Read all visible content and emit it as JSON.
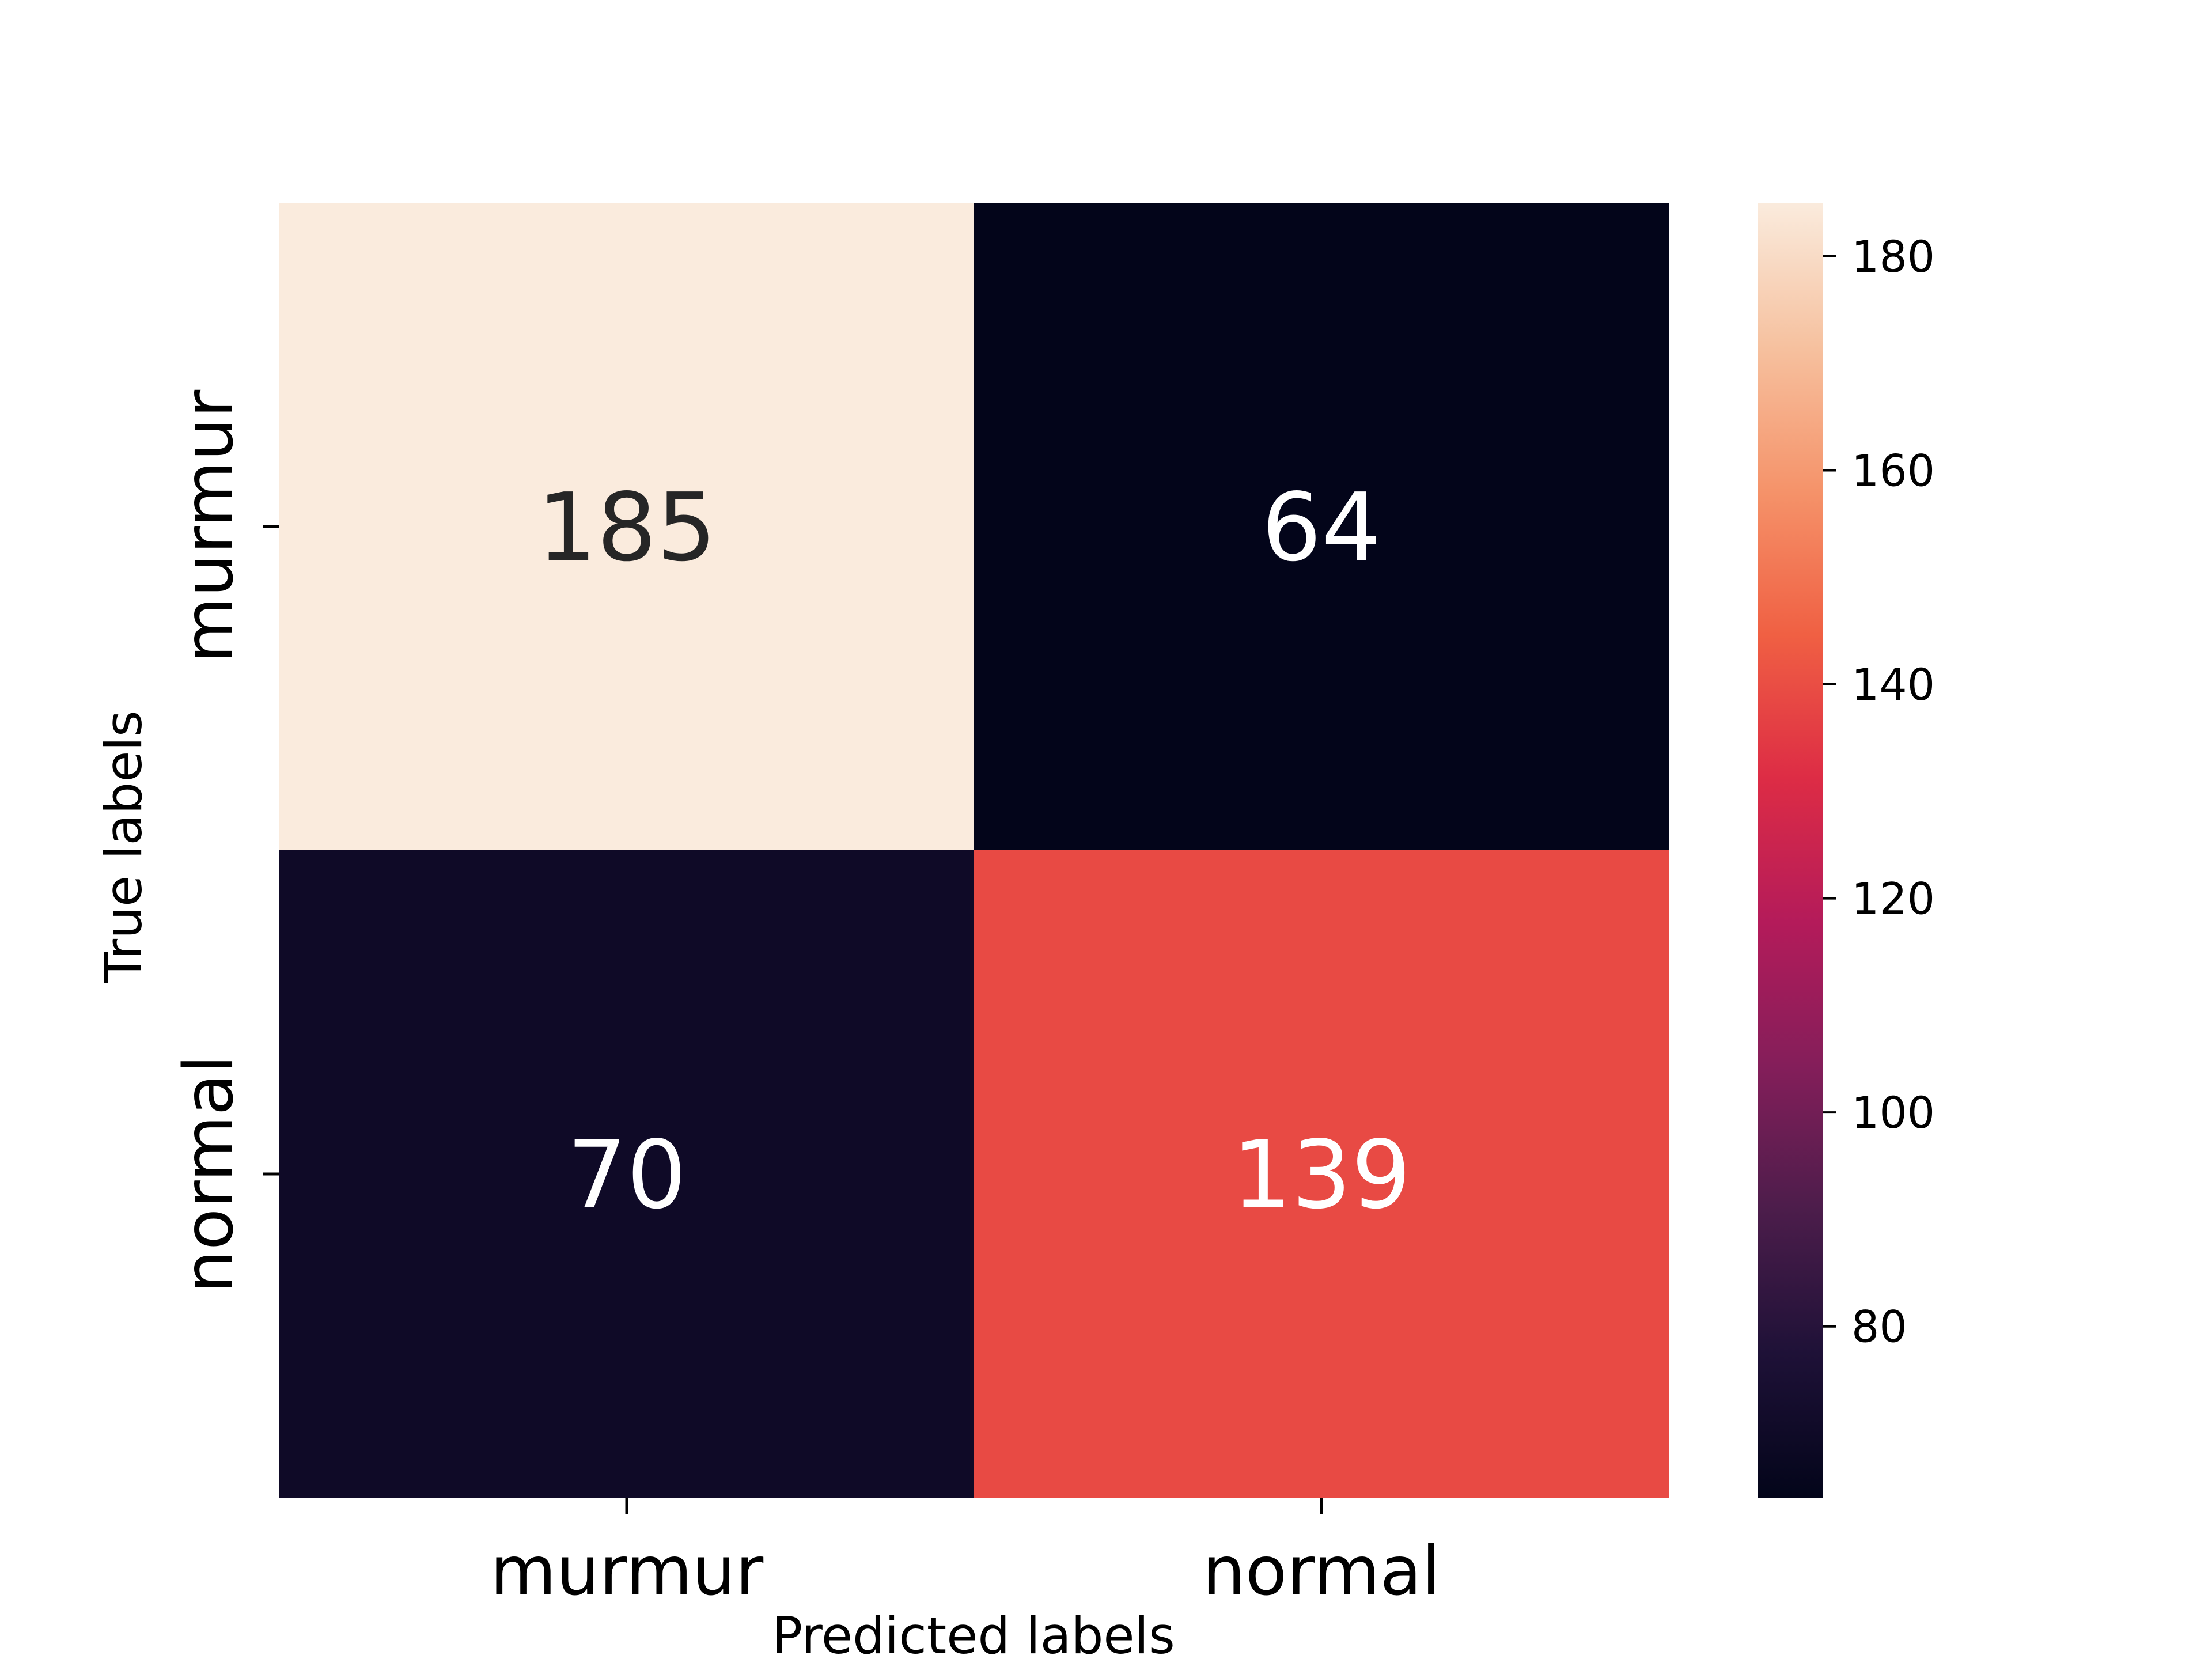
{
  "chart_data": {
    "type": "heatmap",
    "title": "",
    "xlabel": "Predicted labels",
    "ylabel": "True labels",
    "x_categories": [
      "murmur",
      "normal"
    ],
    "y_categories": [
      "murmur",
      "normal"
    ],
    "values": [
      [
        185,
        64
      ],
      [
        70,
        139
      ]
    ],
    "colorbar": {
      "min": 64,
      "max": 185,
      "ticks": [
        80,
        100,
        120,
        140,
        160,
        180
      ],
      "colormap": "rocket",
      "stops": [
        "#03051a",
        "#1e1137",
        "#4c1d4b",
        "#841e5a",
        "#b41b5a",
        "#dd2c45",
        "#f06043",
        "#f5936a",
        "#f6c19f",
        "#faebdd"
      ]
    },
    "grid": false
  }
}
